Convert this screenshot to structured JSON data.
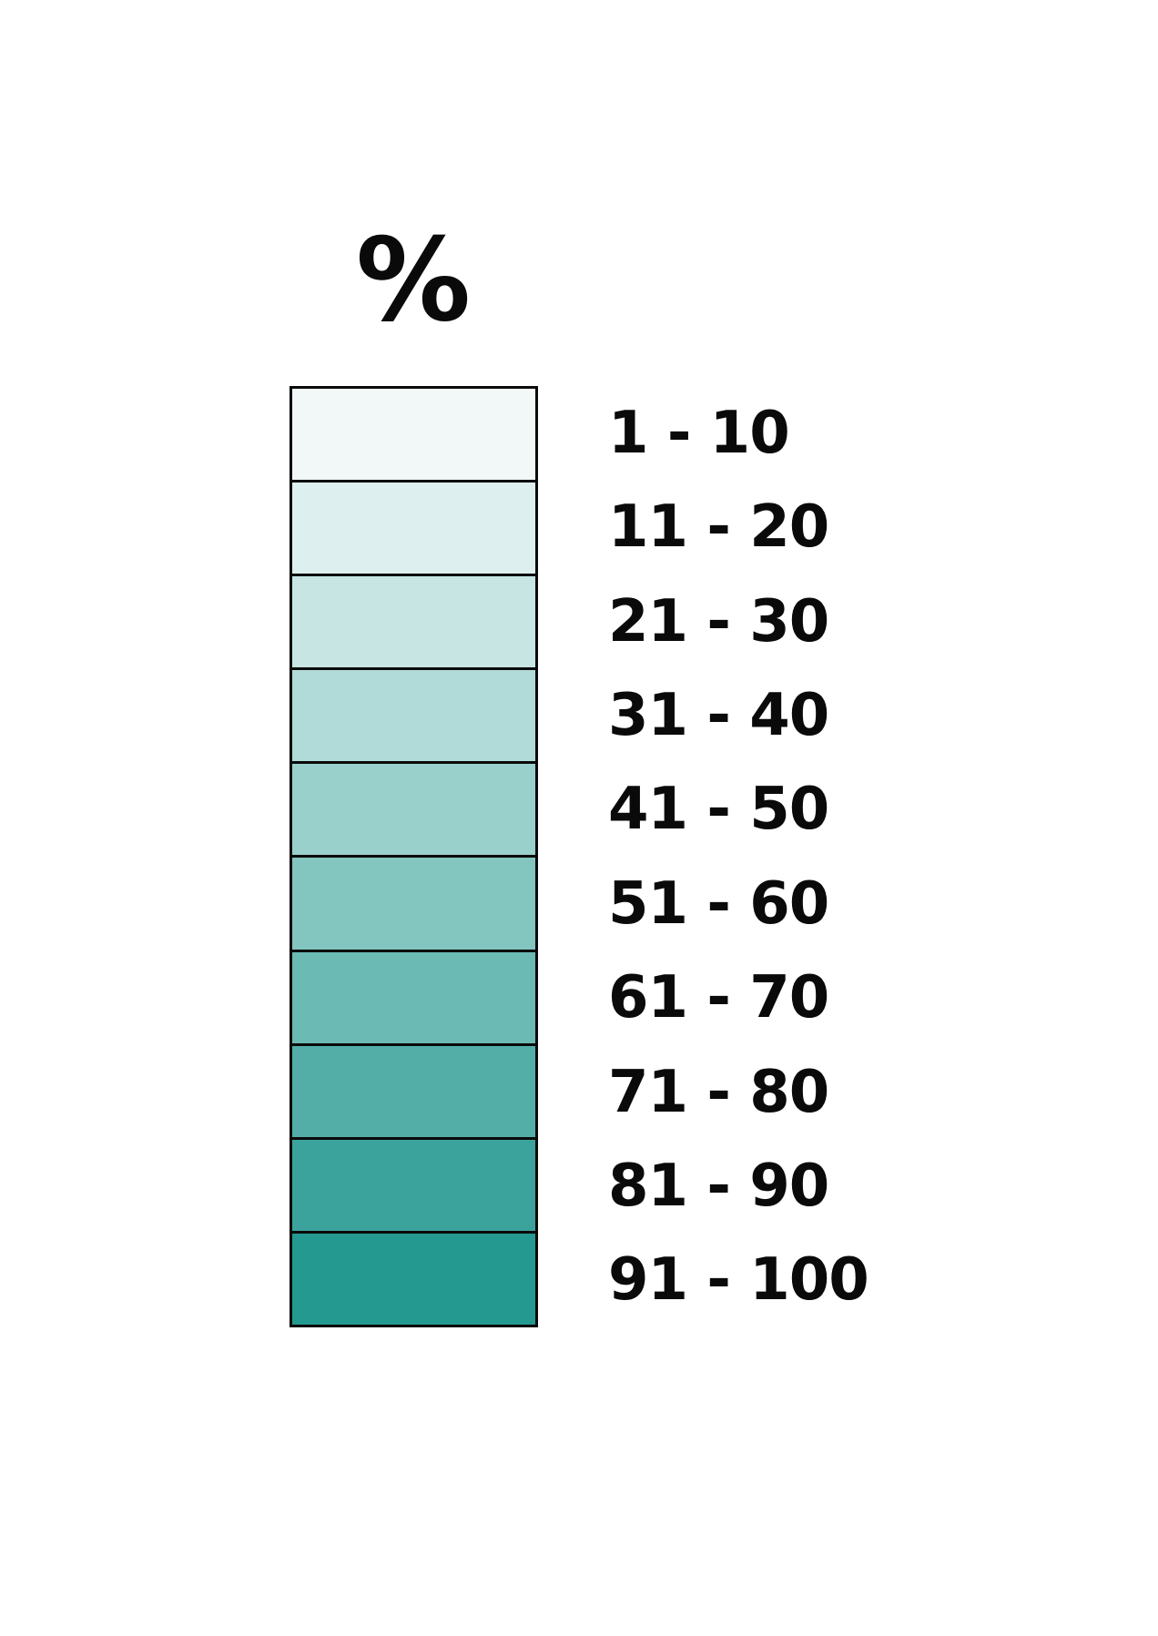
{
  "legend": {
    "title": "%",
    "items": [
      {
        "label": "1 - 10",
        "color": "#f2f8f7"
      },
      {
        "label": "11 - 20",
        "color": "#ddefee"
      },
      {
        "label": "21 - 30",
        "color": "#c6e5e3"
      },
      {
        "label": "31 - 40",
        "color": "#b0dbd8"
      },
      {
        "label": "41 - 50",
        "color": "#99d0cb"
      },
      {
        "label": "51 - 60",
        "color": "#83c5bf"
      },
      {
        "label": "61 - 70",
        "color": "#6cbab4"
      },
      {
        "label": "71 - 80",
        "color": "#53aea8"
      },
      {
        "label": "81 - 90",
        "color": "#3ba39c"
      },
      {
        "label": "91 - 100",
        "color": "#249990"
      }
    ]
  }
}
